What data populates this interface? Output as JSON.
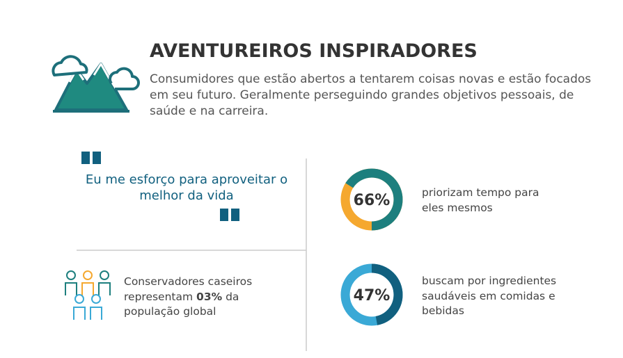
{
  "header": {
    "title": "AVENTUREIROS INSPIRADORES",
    "description": "Consumidores que estão abertos a tentarem coisas novas e estão focados em seu futuro. Geralmente perseguindo grandes objetivos pessoais, de saúde e na carreira."
  },
  "quote": "Eu me esforço para aproveitar o melhor da vida",
  "population": {
    "text_before": "Conservadores caseiros representam",
    "highlight": "03%",
    "text_after": "da população global"
  },
  "stats": [
    {
      "value": 66,
      "value_label": "66%",
      "text": "priorizam tempo para eles mesmos",
      "color": "#1d7f7e",
      "track_color": "#f5a82f",
      "direction": "counterclockwise"
    },
    {
      "value": 47,
      "value_label": "47%",
      "text": "buscam por ingredientes saudáveis em comidas e bebidas",
      "color": "#11607f",
      "track_color": "#3aa9d6",
      "direction": "clockwise"
    }
  ]
}
